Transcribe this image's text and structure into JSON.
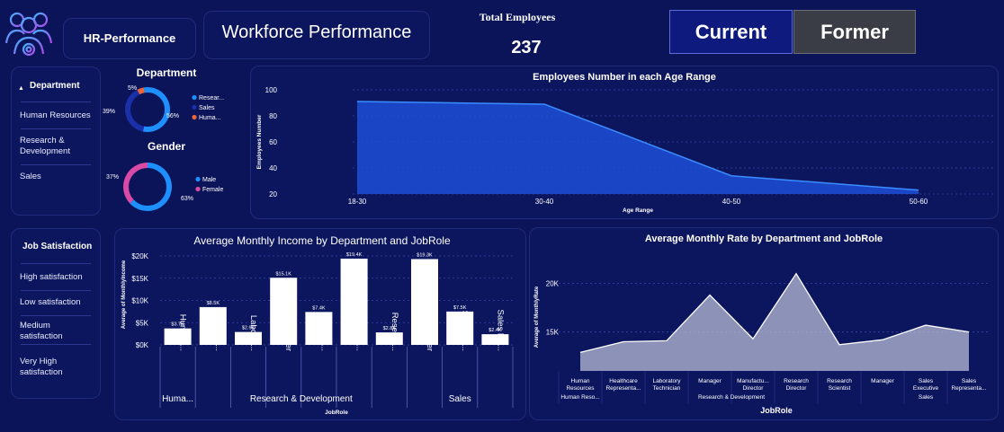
{
  "header": {
    "app_title": "HR-Performance",
    "page_title": "Workforce Performance",
    "kpi_label": "Total Employees",
    "kpi_value": "237",
    "toggle_current": "Current",
    "toggle_former": "Former",
    "logo_icon": "team-gear-icon"
  },
  "department_slicer": {
    "title": "Department",
    "items": [
      "Human Resources",
      "Research & Development",
      "Sales"
    ]
  },
  "job_satisfaction_slicer": {
    "title": "Job Satisfaction",
    "items": [
      "High satisfaction",
      "Low satisfaction",
      "Medium satisfaction",
      "Very High satisfaction"
    ]
  },
  "chart_data": [
    {
      "type": "donut",
      "title": "Department",
      "slices": [
        {
          "label": "Resear...",
          "value": 56,
          "display": "56%",
          "color": "#1e8fff"
        },
        {
          "label": "Sales",
          "value": 39,
          "display": "39%",
          "color": "#1b2fa8"
        },
        {
          "label": "Huma...",
          "value": 5,
          "display": "5%",
          "color": "#e8663a"
        }
      ]
    },
    {
      "type": "donut",
      "title": "Gender",
      "slices": [
        {
          "label": "Male",
          "value": 63,
          "display": "63%",
          "color": "#1e8fff"
        },
        {
          "label": "Female",
          "value": 37,
          "display": "37%",
          "color": "#d84aa6"
        }
      ]
    },
    {
      "type": "area",
      "title": "Employees Number in each Age Range",
      "xlabel": "Age Range",
      "ylabel": "Employees Number",
      "categories": [
        "18-30",
        "30-40",
        "40-50",
        "50-60"
      ],
      "values": [
        91,
        89,
        34,
        23
      ],
      "ylim": [
        20,
        100
      ],
      "yticks": [
        20,
        40,
        60,
        80,
        100
      ],
      "grid": true,
      "color": "#1d4fd8"
    },
    {
      "type": "bar",
      "title": "Average Monthly Income by Department and JobRole",
      "xlabel": "JobRole",
      "ylabel": "Average of MonthlyIncome",
      "ylim": [
        0,
        20000
      ],
      "ytick_labels": [
        "$0K",
        "$5K",
        "$10K",
        "$15K",
        "$20K"
      ],
      "yticks": [
        0,
        5000,
        10000,
        15000,
        20000
      ],
      "categories": [
        "Human ...",
        "Healthc...",
        "Laborat...",
        "Manager",
        "Manufa...",
        "Researc...",
        "Researc...",
        "Manager",
        "Sales Ex...",
        "Sales Re..."
      ],
      "values": [
        3700,
        8500,
        2900,
        15100,
        7400,
        19400,
        2800,
        19300,
        7500,
        2400
      ],
      "data_labels": [
        "$3.7K",
        "$8.5K",
        "$2.9K",
        "$15.1K",
        "$7.4K",
        "$19.4K",
        "$2.8K",
        "$19.3K",
        "$7.5K",
        "$2.4K"
      ],
      "groups": [
        {
          "label": "Huma...",
          "count": 1
        },
        {
          "label": "Research & Development",
          "count": 6
        },
        {
          "label": "Sales",
          "count": 3
        }
      ],
      "grid": true,
      "color": "#ffffff"
    },
    {
      "type": "area",
      "title": "Average Monthly Rate by Department and JobRole",
      "xlabel": "JobRole",
      "ylabel": "Average of MonthlyRate",
      "ylim": [
        11000,
        23000
      ],
      "yticks": [
        15000,
        20000
      ],
      "ytick_labels": [
        "15K",
        "20K"
      ],
      "categories": [
        "Human Resources",
        "Healthcare Representa...",
        "Laboratory Technician",
        "Manager",
        "Manufactu... Director",
        "Research Director",
        "Research Scientist",
        "Manager",
        "Sales Executive",
        "Sales Representa..."
      ],
      "values": [
        12900,
        14000,
        14100,
        18800,
        14300,
        21000,
        13700,
        14200,
        15700,
        15000
      ],
      "groups": [
        {
          "label": "Human Reso...",
          "count": 1
        },
        {
          "label": "Research & Development",
          "count": 6
        },
        {
          "label": "Sales",
          "count": 3
        }
      ],
      "grid": true,
      "color": "#b8bcd8"
    }
  ]
}
